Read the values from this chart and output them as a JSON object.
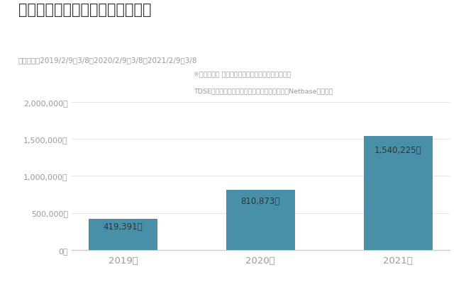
{
  "title": "「東日本大震災」関連投稿数推移",
  "subtitle": "調査期間：2019/2/9～3/8、2020/2/9～3/8、2021/2/9～3/8",
  "note_line1": "※シエンプレ デジタル・クライシス総合研究所調べ",
  "note_line2": "TDSE提供のソーシャルアナリティクスツール「Netbase」を使用",
  "categories": [
    "2019年",
    "2020年",
    "2021年"
  ],
  "values": [
    419391,
    810873,
    1540225
  ],
  "bar_color": "#4a8fa8",
  "bar_labels": [
    "419,391件",
    "810,873件",
    "1,540,225件"
  ],
  "ylim": [
    0,
    2000000
  ],
  "yticks": [
    0,
    500000,
    1000000,
    1500000,
    2000000
  ],
  "ytick_labels": [
    "0件",
    "500,000件",
    "1,000,000件",
    "1,500,000件",
    "2,000,000件"
  ],
  "background_color": "#ffffff",
  "title_color": "#333333",
  "subtitle_color": "#999999",
  "bar_label_color": "#333333",
  "axis_color": "#cccccc",
  "tick_color": "#999999",
  "grid_color": "#e5e5e5"
}
